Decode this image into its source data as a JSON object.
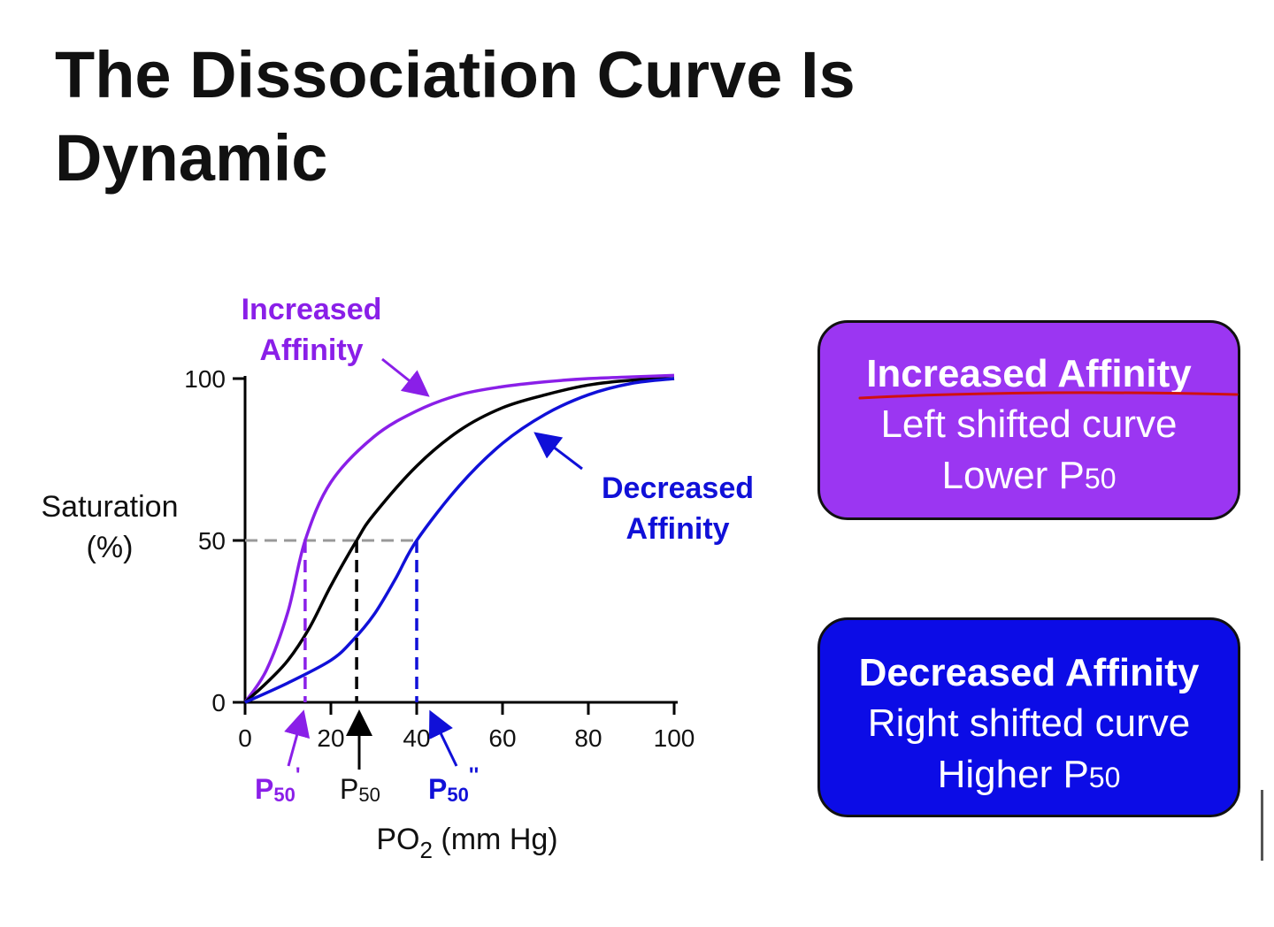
{
  "title": "The Dissociation Curve Is Dynamic",
  "colors": {
    "increased": "#8a1fe8",
    "normal": "#000000",
    "decreased": "#1010d8",
    "guide": "#999999",
    "red_mark": "#d01010"
  },
  "chart_data": {
    "type": "line",
    "xlabel": "PO",
    "xlabel_sub": "2",
    "xlabel_unit": " (mm Hg)",
    "ylabel_line1": "Saturation",
    "ylabel_line2": "(%)",
    "xlim": [
      0,
      100
    ],
    "ylim": [
      0,
      100
    ],
    "x_ticks": [
      "0",
      "20",
      "40",
      "60",
      "80",
      "100"
    ],
    "x_tick_values": [
      0,
      20,
      40,
      60,
      80,
      100
    ],
    "y_ticks": [
      "0",
      "50",
      "100"
    ],
    "y_tick_values": [
      0,
      50,
      100
    ],
    "reference_line_y": 50,
    "series": [
      {
        "key": "increased",
        "x": [
          0,
          5,
          10,
          14,
          20,
          30,
          40,
          50,
          60,
          70,
          80,
          90,
          100
        ],
        "y": [
          0,
          10,
          28,
          50,
          68,
          82,
          90,
          95,
          97.5,
          99,
          100,
          100.5,
          101
        ]
      },
      {
        "key": "normal",
        "x": [
          0,
          5,
          10,
          15,
          20,
          26,
          30,
          40,
          50,
          60,
          70,
          80,
          90,
          100
        ],
        "y": [
          0,
          6,
          13,
          23,
          36,
          50,
          58,
          73,
          84,
          91,
          95,
          98,
          99.5,
          100
        ]
      },
      {
        "key": "decreased",
        "x": [
          0,
          10,
          20,
          25,
          30,
          35,
          40,
          50,
          60,
          70,
          80,
          90,
          100
        ],
        "y": [
          0,
          6,
          13,
          19,
          27,
          38,
          50,
          67,
          80,
          89,
          95,
          98.5,
          100
        ]
      }
    ],
    "p50_markers": [
      {
        "key": "increased",
        "x": 14,
        "label": "P",
        "sub": "50",
        "prime": "'"
      },
      {
        "key": "normal",
        "x": 26,
        "label": "P",
        "sub": "50",
        "prime": ""
      },
      {
        "key": "decreased",
        "x": 40,
        "label": "P",
        "sub": "50",
        "prime": "''"
      }
    ],
    "annotations": {
      "increased_line1": "Increased",
      "increased_line2": "Affinity",
      "decreased_line1": "Decreased",
      "decreased_line2": "Affinity"
    }
  },
  "boxes": {
    "increased": {
      "heading": "Increased Affinity",
      "line1": "Left shifted curve",
      "line2_main": "Lower P",
      "line2_sub": "50",
      "color": "#9b36f2"
    },
    "decreased": {
      "heading": "Decreased Affinity",
      "line1": "Right shifted curve",
      "line2_main": "Higher P",
      "line2_sub": "50",
      "color": "#0c0ce6"
    }
  }
}
